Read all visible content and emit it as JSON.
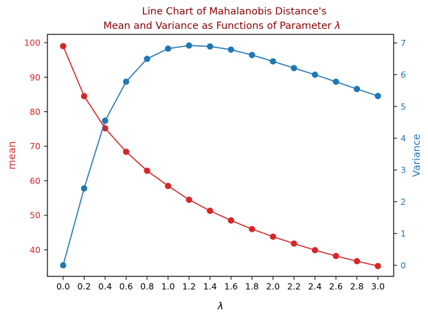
{
  "chart_data": {
    "type": "line",
    "title_line1": "Line Chart of Mahalanobis Distance's",
    "title_line2": "Mean and Variance as Functions of Parameter ",
    "title_symbol": "λ",
    "xlabel": "λ",
    "ylabel_left": "mean",
    "ylabel_right": "Variance",
    "x": [
      0.0,
      0.2,
      0.4,
      0.6,
      0.8,
      1.0,
      1.2,
      1.4,
      1.6,
      1.8,
      2.0,
      2.2,
      2.4,
      2.6,
      2.8,
      3.0
    ],
    "x_tick_labels": [
      "0.0",
      "0.2",
      "0.4",
      "0.6",
      "0.8",
      "1.0",
      "1.2",
      "1.4",
      "1.6",
      "1.8",
      "2.0",
      "2.2",
      "2.4",
      "2.6",
      "2.8",
      "3.0"
    ],
    "xlim": [
      -0.15,
      3.15
    ],
    "series": [
      {
        "axis": "left",
        "color": "#d62728",
        "values": [
          99.0,
          84.5,
          75.2,
          68.4,
          62.9,
          58.5,
          54.5,
          51.3,
          48.5,
          46.0,
          43.8,
          41.8,
          39.9,
          38.2,
          36.7,
          35.3
        ]
      },
      {
        "axis": "right",
        "color": "#1f77b4",
        "values": [
          0.0,
          2.42,
          4.55,
          5.78,
          6.5,
          6.82,
          6.92,
          6.89,
          6.79,
          6.62,
          6.42,
          6.21,
          6.0,
          5.78,
          5.55,
          5.33
        ]
      }
    ],
    "ylim_left": [
      32.3,
      102.4
    ],
    "yticks_left": [
      40,
      50,
      60,
      70,
      80,
      90,
      100
    ],
    "ylim_right": [
      -0.35,
      7.27
    ],
    "yticks_right": [
      0,
      1,
      2,
      3,
      4,
      5,
      6,
      7
    ],
    "grid": false,
    "title_color": "#8b0000",
    "left_axis_color": "#d62728",
    "right_axis_color": "#1f77b4"
  }
}
